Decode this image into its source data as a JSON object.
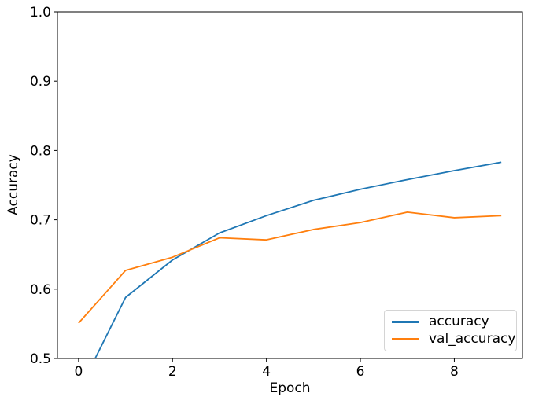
{
  "chart_data": {
    "type": "line",
    "x": [
      0,
      1,
      2,
      3,
      4,
      5,
      6,
      7,
      8,
      9
    ],
    "series": [
      {
        "name": "accuracy",
        "color": "#1f77b4",
        "values": [
          0.452,
          0.588,
          0.642,
          0.681,
          0.706,
          0.728,
          0.744,
          0.758,
          0.771,
          0.783
        ]
      },
      {
        "name": "val_accuracy",
        "color": "#ff7f0e",
        "values": [
          0.551,
          0.627,
          0.646,
          0.674,
          0.671,
          0.686,
          0.696,
          0.711,
          0.703,
          0.706
        ]
      }
    ],
    "title": "",
    "xlabel": "Epoch",
    "ylabel": "Accuracy",
    "xlim": [
      -0.45,
      9.45
    ],
    "ylim": [
      0.5,
      1.0
    ],
    "xticks": [
      0,
      2,
      4,
      6,
      8
    ],
    "xtick_labels": [
      "0",
      "2",
      "4",
      "6",
      "8"
    ],
    "yticks": [
      0.5,
      0.6,
      0.7,
      0.8,
      0.9,
      1.0
    ],
    "ytick_labels": [
      "0.5",
      "0.6",
      "0.7",
      "0.8",
      "0.9",
      "1.0"
    ],
    "grid": false,
    "legend_position": "lower right",
    "frame_color": "#000000",
    "background": "#ffffff",
    "line_width": 1.8
  },
  "legend": {
    "entries": [
      {
        "label": "accuracy",
        "color": "#1f77b4"
      },
      {
        "label": "val_accuracy",
        "color": "#ff7f0e"
      }
    ]
  }
}
